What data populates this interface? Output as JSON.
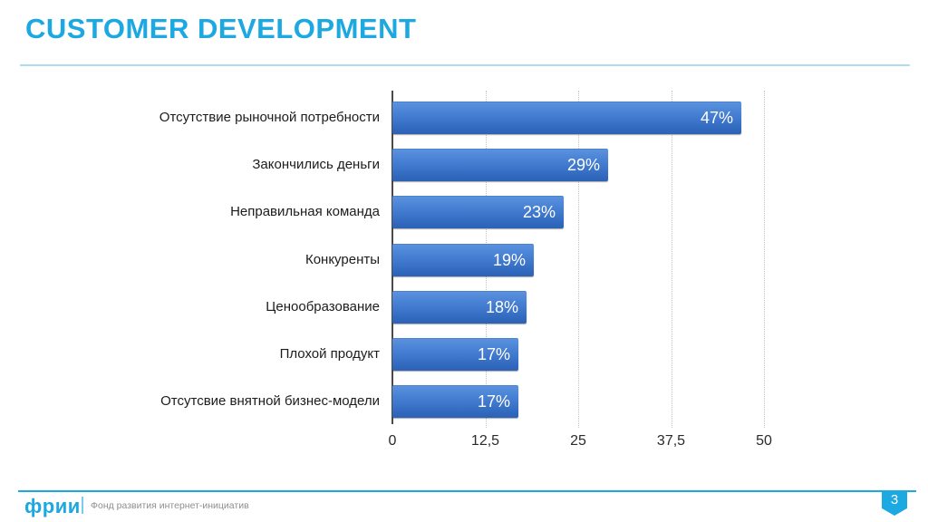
{
  "slide": {
    "title": "CUSTOMER DEVELOPMENT"
  },
  "chart_data": {
    "type": "bar",
    "orientation": "horizontal",
    "title": "",
    "categories": [
      "Отсутствие рыночной потребности",
      "Закончились деньги",
      "Неправильная команда",
      "Конкуренты",
      "Ценообразование",
      "Плохой продукт",
      "Отсутсвие внятной бизнес-модели"
    ],
    "values": [
      47,
      29,
      23,
      19,
      18,
      17,
      17
    ],
    "value_labels": [
      "47%",
      "29%",
      "23%",
      "19%",
      "18%",
      "17%",
      "17%"
    ],
    "xlim": [
      0,
      50
    ],
    "xticks": [
      0,
      12.5,
      25,
      37.5,
      50
    ],
    "xtick_labels": [
      "0",
      "12,5",
      "25",
      "37,5",
      "50"
    ],
    "grid": "vertical-dotted",
    "legend": "none",
    "bar_color_top": "#5b92de",
    "bar_color_bottom": "#2e62b4",
    "value_label_color": "#ffffff"
  },
  "footer": {
    "logo_text": "фрии",
    "caption": "Фонд развития интернет-инициатив",
    "page_number": "3"
  },
  "colors": {
    "accent": "#1CA8E1",
    "title_divider": "#AEDCF2",
    "axis": "#4a4a4a",
    "gridline": "#c3c3c3"
  }
}
